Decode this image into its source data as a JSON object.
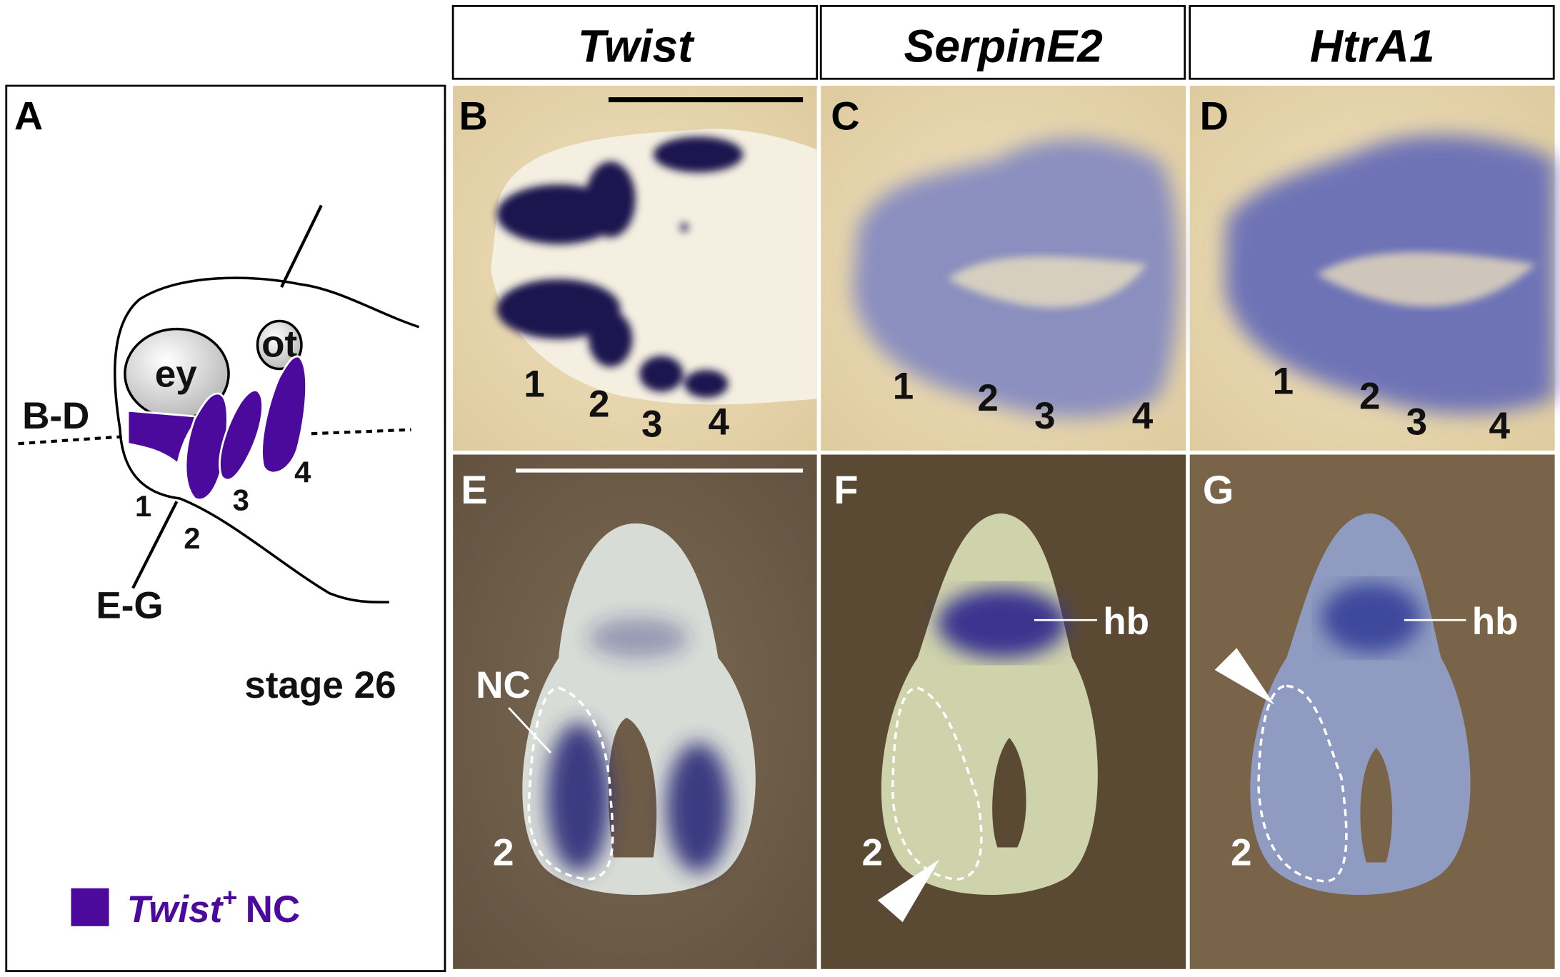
{
  "headers": {
    "col1": "Twist",
    "col2": "SerpinE2",
    "col3": "HtrA1"
  },
  "panels": {
    "A": "A",
    "B": "B",
    "C": "C",
    "D": "D",
    "E": "E",
    "F": "F",
    "G": "G"
  },
  "schematic": {
    "eye_label": "ey",
    "otic_label": "ot",
    "section_bd": "B-D",
    "section_eg": "E-G",
    "arch_numbers": [
      "1",
      "2",
      "3",
      "4"
    ],
    "stage": "stage 26",
    "legend_gene": "Twist",
    "legend_sup": "+",
    "legend_suffix": "NC",
    "legend_color": "#4b0a9c"
  },
  "top_row_arch_numbers": [
    "1",
    "2",
    "3",
    "4"
  ],
  "bottom_row": {
    "nc_label": "NC",
    "arch_label": "2",
    "hb_label": "hb"
  },
  "colors": {
    "top_background": "#e8d7ad",
    "bottom_background": "#6e5c48",
    "stain": "#2c2270"
  }
}
